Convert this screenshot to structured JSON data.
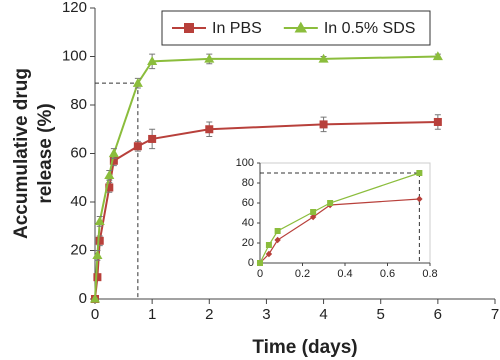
{
  "chart_data": [
    {
      "type": "line",
      "xlabel": "Time (days)",
      "ylabel": [
        "Accumulative drug",
        "release (%)"
      ],
      "xlim": [
        0,
        7
      ],
      "xticks": [
        0,
        1,
        2,
        3,
        4,
        5,
        6,
        7
      ],
      "ylim": [
        0,
        120
      ],
      "yticks": [
        0,
        20,
        40,
        60,
        80,
        100,
        120
      ],
      "legend": "top",
      "reference": {
        "x": 0.75,
        "y": 89
      },
      "series": [
        {
          "name": "In PBS",
          "color": "#b8403b",
          "marker": "square",
          "x": [
            0,
            0.042,
            0.083,
            0.25,
            0.33,
            0.75,
            1,
            2,
            4,
            6
          ],
          "values": [
            0,
            9,
            24,
            46,
            57,
            63,
            66,
            70,
            72,
            73
          ],
          "errors": [
            0,
            1,
            2,
            2,
            2,
            2,
            4,
            3,
            3,
            3
          ]
        },
        {
          "name": "In 0.5% SDS",
          "color": "#8bbd3c",
          "marker": "triangle",
          "x": [
            0,
            0.042,
            0.083,
            0.25,
            0.33,
            0.75,
            1,
            2,
            4,
            6
          ],
          "values": [
            0,
            18,
            32,
            51,
            60,
            89,
            98,
            99,
            99,
            100
          ],
          "errors": [
            0,
            2,
            2,
            2,
            2,
            2,
            3,
            2,
            1,
            1
          ]
        }
      ]
    },
    {
      "type": "line",
      "xlim": [
        0,
        0.8
      ],
      "xticks": [
        0,
        0.2,
        0.4,
        0.6,
        0.8
      ],
      "ylim": [
        0,
        100
      ],
      "yticks": [
        0,
        20,
        40,
        60,
        80,
        100
      ],
      "reference": {
        "x": 0.75,
        "y": 90
      },
      "series": [
        {
          "name": "In PBS",
          "color": "#b8403b",
          "marker": "diamond",
          "x": [
            0,
            0.042,
            0.083,
            0.25,
            0.33,
            0.75
          ],
          "values": [
            0,
            9,
            23,
            46,
            58,
            64
          ]
        },
        {
          "name": "In 0.5% SDS",
          "color": "#8bbd3c",
          "marker": "square",
          "x": [
            0,
            0.042,
            0.083,
            0.25,
            0.33,
            0.75
          ],
          "values": [
            0,
            18,
            32,
            51,
            60,
            90
          ]
        }
      ]
    }
  ]
}
